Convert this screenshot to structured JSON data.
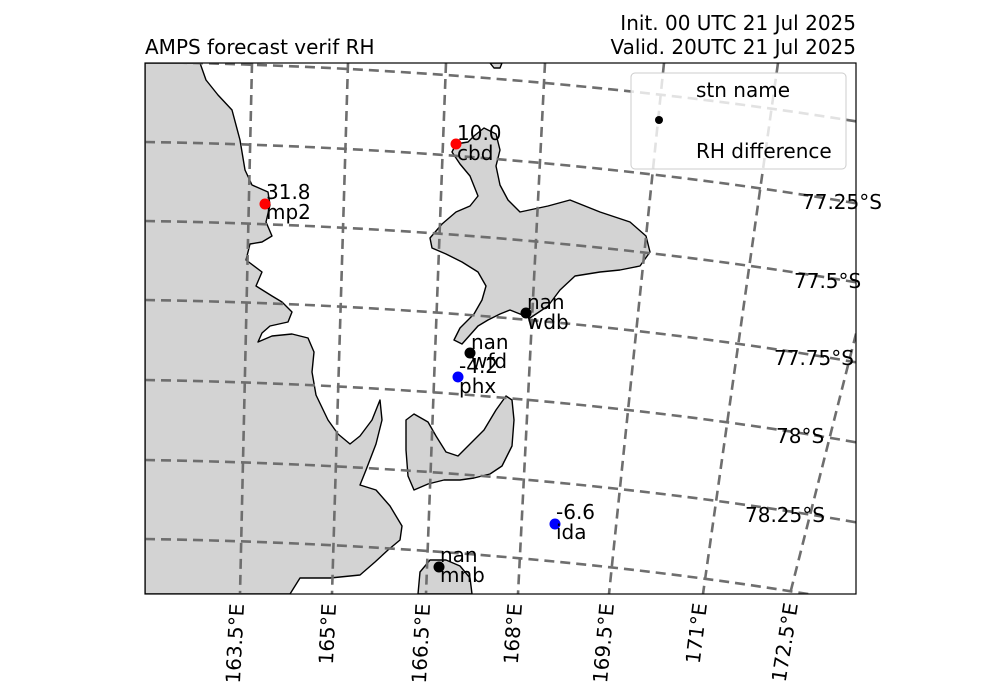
{
  "title_left": "AMPS forecast verif RH",
  "title_right_line1": "Init. 00 UTC 21 Jul 2025",
  "title_right_line2": "Valid. 20UTC 21 Jul 2025",
  "legend": {
    "line1": "stn name",
    "line2": "RH difference",
    "marker_color": "#000000"
  },
  "lat_labels": [
    "77.25°S",
    "77.5°S",
    "77.75°S",
    "78°S",
    "78.25°S"
  ],
  "lon_labels": [
    "163.5°E",
    "165°E",
    "166.5°E",
    "168°E",
    "169.5°E",
    "171°E",
    "172.5°E"
  ],
  "colors": {
    "positive": "#ff0000",
    "negative": "#0000ff",
    "missing": "#000000",
    "land": "#d3d3d3",
    "grid": "#6e6e6e"
  },
  "stations": [
    {
      "name": "mp2",
      "value": "31.8",
      "color": "#ff0000"
    },
    {
      "name": "cbd",
      "value": "10.0",
      "color": "#ff0000"
    },
    {
      "name": "wdb",
      "value": "nan",
      "color": "#000000"
    },
    {
      "name": "wfd",
      "value": "nan",
      "color": "#000000"
    },
    {
      "name": "phx",
      "value": "-4.2",
      "color": "#0000ff"
    },
    {
      "name": "ida",
      "value": "-6.6",
      "color": "#0000ff"
    },
    {
      "name": "mnb",
      "value": "nan",
      "color": "#000000"
    }
  ]
}
